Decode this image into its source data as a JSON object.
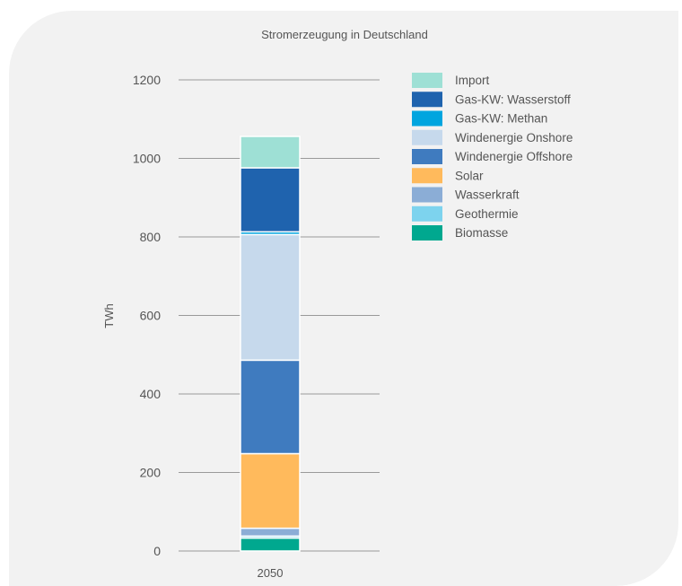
{
  "chart_data": {
    "type": "bar",
    "stacked": true,
    "title": "Stromerzeugung in Deutschland",
    "xlabel": "",
    "ylabel": "TWh",
    "categories": [
      "2050"
    ],
    "ylim": [
      0,
      1200
    ],
    "yticks": [
      0,
      200,
      400,
      600,
      800,
      1000,
      1200
    ],
    "grid": "horizontal",
    "legend_position": "right",
    "series": [
      {
        "name": "Biomasse",
        "values": [
          33
        ],
        "color": "#00a88f"
      },
      {
        "name": "Geothermie",
        "values": [
          5
        ],
        "color": "#7dd3ee"
      },
      {
        "name": "Wasserkraft",
        "values": [
          20
        ],
        "color": "#8badd6"
      },
      {
        "name": "Solar",
        "values": [
          190
        ],
        "color": "#ffba5c"
      },
      {
        "name": "Windenergie Offshore",
        "values": [
          238
        ],
        "color": "#3f7bbf"
      },
      {
        "name": "Windenergie Onshore",
        "values": [
          320
        ],
        "color": "#c6d9ec"
      },
      {
        "name": "Gas-KW: Methan",
        "values": [
          7
        ],
        "color": "#00a5df"
      },
      {
        "name": "Gas-KW: Wasserstoff",
        "values": [
          163
        ],
        "color": "#1f63ae"
      },
      {
        "name": "Import",
        "values": [
          80
        ],
        "color": "#9ee0d5"
      }
    ],
    "legend_order": [
      "Import",
      "Gas-KW: Wasserstoff",
      "Gas-KW: Methan",
      "Windenergie Onshore",
      "Windenergie Offshore",
      "Solar",
      "Wasserkraft",
      "Geothermie",
      "Biomasse"
    ]
  }
}
